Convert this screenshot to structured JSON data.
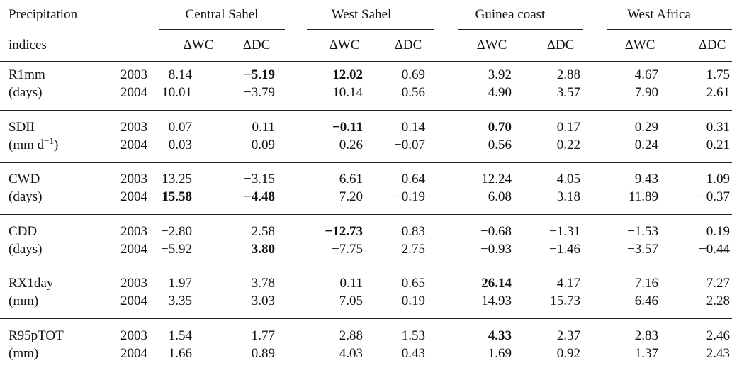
{
  "header": {
    "title": [
      "Precipitation",
      "indices"
    ],
    "groups": [
      "Central Sahel",
      "West Sahel",
      "Guinea coast",
      "West Africa"
    ],
    "subheaders": [
      "ΔWC",
      "ΔDC",
      "ΔWC",
      "ΔDC",
      "ΔWC",
      "ΔDC",
      "ΔWC",
      "ΔDC"
    ]
  },
  "table": {
    "rows": [
      {
        "label": "R1mm",
        "unit": [
          "(days)"
        ],
        "years": [
          "2003",
          "2004"
        ],
        "values": [
          [
            "8.14",
            "−5.19",
            "12.02",
            "0.69",
            "3.92",
            "2.88",
            "4.67",
            "1.75"
          ],
          [
            "10.01",
            "−3.79",
            "10.14",
            "0.56",
            "4.90",
            "3.57",
            "7.90",
            "2.61"
          ]
        ],
        "bold": [
          [
            1,
            2
          ],
          []
        ]
      },
      {
        "label": "SDII",
        "unit": [
          "(mm d",
          "−1",
          ")"
        ],
        "years": [
          "2003",
          "2004"
        ],
        "values": [
          [
            "0.07",
            "0.11",
            "−0.11",
            "0.14",
            "0.70",
            "0.17",
            "0.29",
            "0.31"
          ],
          [
            "0.03",
            "0.09",
            "0.26",
            "−0.07",
            "0.56",
            "0.22",
            "0.24",
            "0.21"
          ]
        ],
        "bold": [
          [
            2,
            4
          ],
          []
        ]
      },
      {
        "label": "CWD",
        "unit": [
          "(days)"
        ],
        "years": [
          "2003",
          "2004"
        ],
        "values": [
          [
            "13.25",
            "−3.15",
            "6.61",
            "0.64",
            "12.24",
            "4.05",
            "9.43",
            "1.09"
          ],
          [
            "15.58",
            "−4.48",
            "7.20",
            "−0.19",
            "6.08",
            "3.18",
            "11.89",
            "−0.37"
          ]
        ],
        "bold": [
          [],
          [
            0,
            1
          ]
        ]
      },
      {
        "label": "CDD",
        "unit": [
          "(days)"
        ],
        "years": [
          "2003",
          "2004"
        ],
        "values": [
          [
            "−2.80",
            "2.58",
            "−12.73",
            "0.83",
            "−0.68",
            "−1.31",
            "−1.53",
            "0.19"
          ],
          [
            "−5.92",
            "3.80",
            "−7.75",
            "2.75",
            "−0.93",
            "−1.46",
            "−3.57",
            "−0.44"
          ]
        ],
        "bold": [
          [
            2
          ],
          [
            1
          ]
        ]
      },
      {
        "label": "RX1day",
        "unit": [
          "(mm)"
        ],
        "years": [
          "2003",
          "2004"
        ],
        "values": [
          [
            "1.97",
            "3.78",
            "0.11",
            "0.65",
            "26.14",
            "4.17",
            "7.16",
            "7.27"
          ],
          [
            "3.35",
            "3.03",
            "7.05",
            "0.19",
            "14.93",
            "15.73",
            "6.46",
            "2.28"
          ]
        ],
        "bold": [
          [
            4
          ],
          []
        ]
      },
      {
        "label": "R95pTOT",
        "unit": [
          "(mm)"
        ],
        "years": [
          "2003",
          "2004"
        ],
        "values": [
          [
            "1.54",
            "1.77",
            "2.88",
            "1.53",
            "4.33",
            "2.37",
            "2.83",
            "2.46"
          ],
          [
            "1.66",
            "0.89",
            "4.03",
            "0.43",
            "1.69",
            "0.92",
            "1.37",
            "2.43"
          ]
        ],
        "bold": [
          [
            4
          ],
          []
        ]
      }
    ]
  }
}
